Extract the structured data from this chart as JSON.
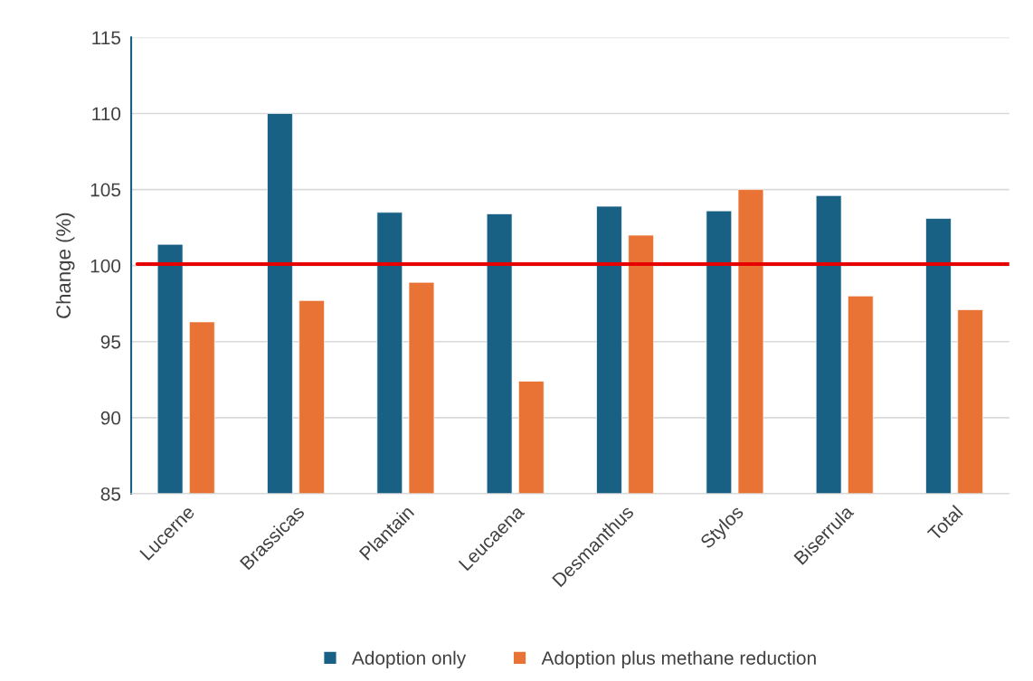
{
  "chart_data": {
    "type": "bar",
    "ylabel": "Change (%)",
    "categories": [
      "Lucerne",
      "Brassicas",
      "Plantain",
      "Leucaena",
      "Desmanthus",
      "Stylos",
      "Biserrula",
      "Total"
    ],
    "series": [
      {
        "name": "Adoption only",
        "color": "#186184",
        "values": [
          101.4,
          110.0,
          103.5,
          103.4,
          103.9,
          103.6,
          104.6,
          103.1
        ]
      },
      {
        "name": "Adoption plus methane reduction",
        "color": "#e97334",
        "values": [
          96.3,
          97.7,
          98.9,
          92.4,
          102.0,
          105.0,
          98.0,
          97.1
        ]
      }
    ],
    "ylim": [
      85,
      115
    ],
    "yticks": [
      85,
      90,
      95,
      100,
      105,
      110,
      115
    ],
    "ref_lines": [
      {
        "axis": "y",
        "value": 100.1,
        "color": "#e60000"
      }
    ],
    "grid": "y",
    "legend": "bottom"
  }
}
